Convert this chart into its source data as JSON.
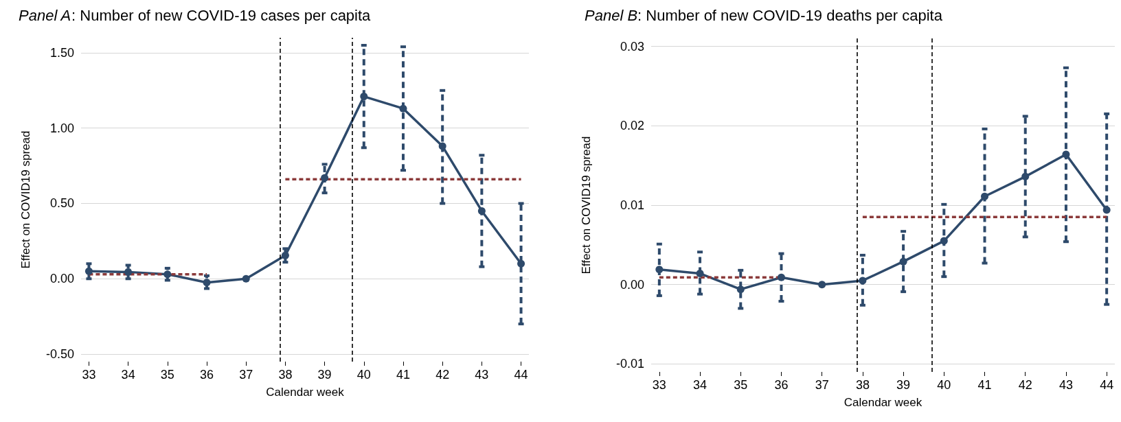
{
  "chart_data": [
    {
      "type": "line",
      "title": "Panel A: Number of new COVID-19 cases per capita",
      "xlabel": "Calendar week",
      "ylabel": "Effect on COVID19 spread",
      "x": [
        33,
        34,
        35,
        36,
        37,
        38,
        39,
        40,
        41,
        42,
        43,
        44
      ],
      "xlim": [
        32.8,
        44.2
      ],
      "xticks": [
        33,
        34,
        35,
        36,
        37,
        38,
        39,
        40,
        41,
        42,
        43,
        44
      ],
      "ylim": [
        -0.55,
        1.6
      ],
      "yticks": [
        {
          "value": -0.5,
          "label": "-0.50"
        },
        {
          "value": 0,
          "label": "0.00"
        },
        {
          "value": 0.5,
          "label": "0.50"
        },
        {
          "value": 1,
          "label": "1.00"
        },
        {
          "value": 1.5,
          "label": "1.50"
        }
      ],
      "grid": "y",
      "legend": false,
      "series": [
        {
          "type": "line",
          "color": "#2e4a6b",
          "marker": "circle",
          "line_style": "solid",
          "values": [
            0.05,
            0.045,
            0.03,
            -0.025,
            0,
            0.155,
            0.67,
            1.21,
            1.13,
            0.88,
            0.45,
            0.1
          ],
          "errors": [
            [
              0.0,
              0.1
            ],
            [
              0.0,
              0.09
            ],
            [
              -0.01,
              0.07
            ],
            [
              -0.065,
              0.02
            ],
            null,
            [
              0.11,
              0.2
            ],
            [
              0.57,
              0.76
            ],
            [
              0.87,
              1.55
            ],
            [
              0.72,
              1.54
            ],
            [
              0.5,
              1.25
            ],
            [
              0.08,
              0.82
            ],
            [
              -0.3,
              0.5
            ]
          ]
        },
        {
          "type": "line",
          "color": "#8b3a3a",
          "marker": "none",
          "line_style": "dashed",
          "x": [
            33,
            36
          ],
          "values": [
            0.03,
            0.03
          ]
        },
        {
          "type": "line",
          "color": "#8b3a3a",
          "marker": "none",
          "line_style": "dashed",
          "x": [
            38,
            44
          ],
          "values": [
            0.66,
            0.66
          ]
        }
      ],
      "ref_lines": [
        {
          "axis": "x",
          "value": 37.86,
          "color": "#000000",
          "line_style": "dashed"
        },
        {
          "axis": "x",
          "value": 39.71,
          "color": "#000000",
          "line_style": "dashed"
        }
      ]
    },
    {
      "type": "line",
      "title": "Panel B: Number of new COVID-19 deaths per capita",
      "xlabel": "Calendar week",
      "ylabel": "Effect on COVID19 spread",
      "x": [
        33,
        34,
        35,
        36,
        37,
        38,
        39,
        40,
        41,
        42,
        43,
        44
      ],
      "xlim": [
        32.8,
        44.2
      ],
      "xticks": [
        33,
        34,
        35,
        36,
        37,
        38,
        39,
        40,
        41,
        42,
        43,
        44
      ],
      "ylim": [
        -0.011,
        0.031
      ],
      "yticks": [
        -0.01,
        {
          "value": 0,
          "label": "0.00"
        },
        0.01,
        0.02,
        0.03
      ],
      "grid": "y",
      "legend": false,
      "series": [
        {
          "type": "line",
          "color": "#2e4a6b",
          "marker": "circle",
          "line_style": "solid",
          "values": [
            0.0019,
            0.0014,
            -0.0006,
            0.0009,
            0,
            0.0005,
            0.0029,
            0.0055,
            0.0111,
            0.0136,
            0.0164,
            0.0094
          ],
          "errors": [
            [
              -0.0014,
              0.0051
            ],
            [
              -0.0012,
              0.0041
            ],
            [
              -0.003,
              0.0018
            ],
            [
              -0.0021,
              0.0039
            ],
            null,
            [
              -0.0026,
              0.0037
            ],
            [
              -0.0009,
              0.0067
            ],
            [
              0.001,
              0.0101
            ],
            [
              0.0027,
              0.0196
            ],
            [
              0.006,
              0.0212
            ],
            [
              0.0054,
              0.0273
            ],
            [
              -0.0025,
              0.0215
            ]
          ]
        },
        {
          "type": "line",
          "color": "#8b3a3a",
          "marker": "none",
          "line_style": "dashed",
          "x": [
            33,
            36
          ],
          "values": [
            0.0009,
            0.0009
          ]
        },
        {
          "type": "line",
          "color": "#8b3a3a",
          "marker": "none",
          "line_style": "dashed",
          "x": [
            38,
            44
          ],
          "values": [
            0.0085,
            0.0085
          ]
        }
      ],
      "ref_lines": [
        {
          "axis": "x",
          "value": 37.86,
          "color": "#000000",
          "line_style": "dashed"
        },
        {
          "axis": "x",
          "value": 39.71,
          "color": "#000000",
          "line_style": "dashed"
        }
      ]
    }
  ]
}
